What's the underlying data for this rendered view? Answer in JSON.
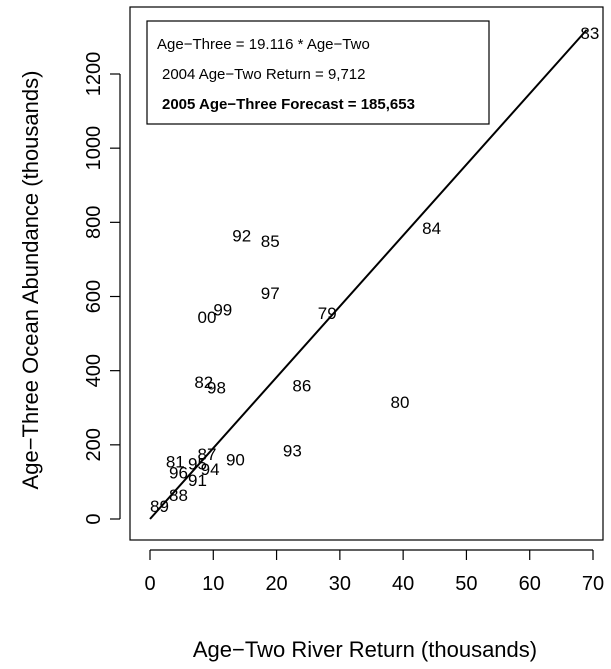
{
  "chart_data": {
    "type": "scatter",
    "xlabel": "Age−Two River Return (thousands)",
    "ylabel": "Age−Three Ocean Abundance (thousands)",
    "xlim": [
      0,
      70
    ],
    "ylim": [
      0,
      1300
    ],
    "x_ticks": [
      0,
      10,
      20,
      30,
      40,
      50,
      60,
      70
    ],
    "x_tick_labels": [
      "0",
      "10",
      "20",
      "30",
      "40",
      "50",
      "60",
      "70"
    ],
    "y_ticks": [
      0,
      200,
      400,
      600,
      800,
      1000,
      1200
    ],
    "y_tick_labels": [
      "0",
      "200",
      "400",
      "600",
      "800",
      "1000",
      "1200"
    ],
    "grid": false,
    "points": [
      {
        "label": "83",
        "x": 69.5,
        "y": 1310
      },
      {
        "label": "84",
        "x": 44.5,
        "y": 785
      },
      {
        "label": "92",
        "x": 14.5,
        "y": 765
      },
      {
        "label": "85",
        "x": 19.0,
        "y": 750
      },
      {
        "label": "97",
        "x": 19.0,
        "y": 610
      },
      {
        "label": "79",
        "x": 28.0,
        "y": 555
      },
      {
        "label": "99",
        "x": 11.5,
        "y": 565
      },
      {
        "label": "00",
        "x": 9.0,
        "y": 545
      },
      {
        "label": "82",
        "x": 8.5,
        "y": 370
      },
      {
        "label": "98",
        "x": 10.5,
        "y": 355
      },
      {
        "label": "86",
        "x": 24.0,
        "y": 360
      },
      {
        "label": "80",
        "x": 39.5,
        "y": 315
      },
      {
        "label": "93",
        "x": 22.5,
        "y": 185
      },
      {
        "label": "90",
        "x": 13.5,
        "y": 160
      },
      {
        "label": "87",
        "x": 9.0,
        "y": 175
      },
      {
        "label": "81",
        "x": 4.0,
        "y": 155
      },
      {
        "label": "95",
        "x": 7.5,
        "y": 150
      },
      {
        "label": "94",
        "x": 9.5,
        "y": 135
      },
      {
        "label": "96",
        "x": 4.5,
        "y": 125
      },
      {
        "label": "91",
        "x": 7.5,
        "y": 105
      },
      {
        "label": "88",
        "x": 4.5,
        "y": 65
      },
      {
        "label": "89",
        "x": 1.5,
        "y": 35
      }
    ],
    "regression": {
      "slope": 19.116,
      "x_range": [
        0,
        69
      ]
    },
    "legend": {
      "placement": "top-left",
      "lines": [
        "Age−Three = 19.116 * Age−Two",
        "2004 Age−Two Return = 9,712",
        "2005 Age−Three Forecast = 185,653"
      ]
    }
  }
}
